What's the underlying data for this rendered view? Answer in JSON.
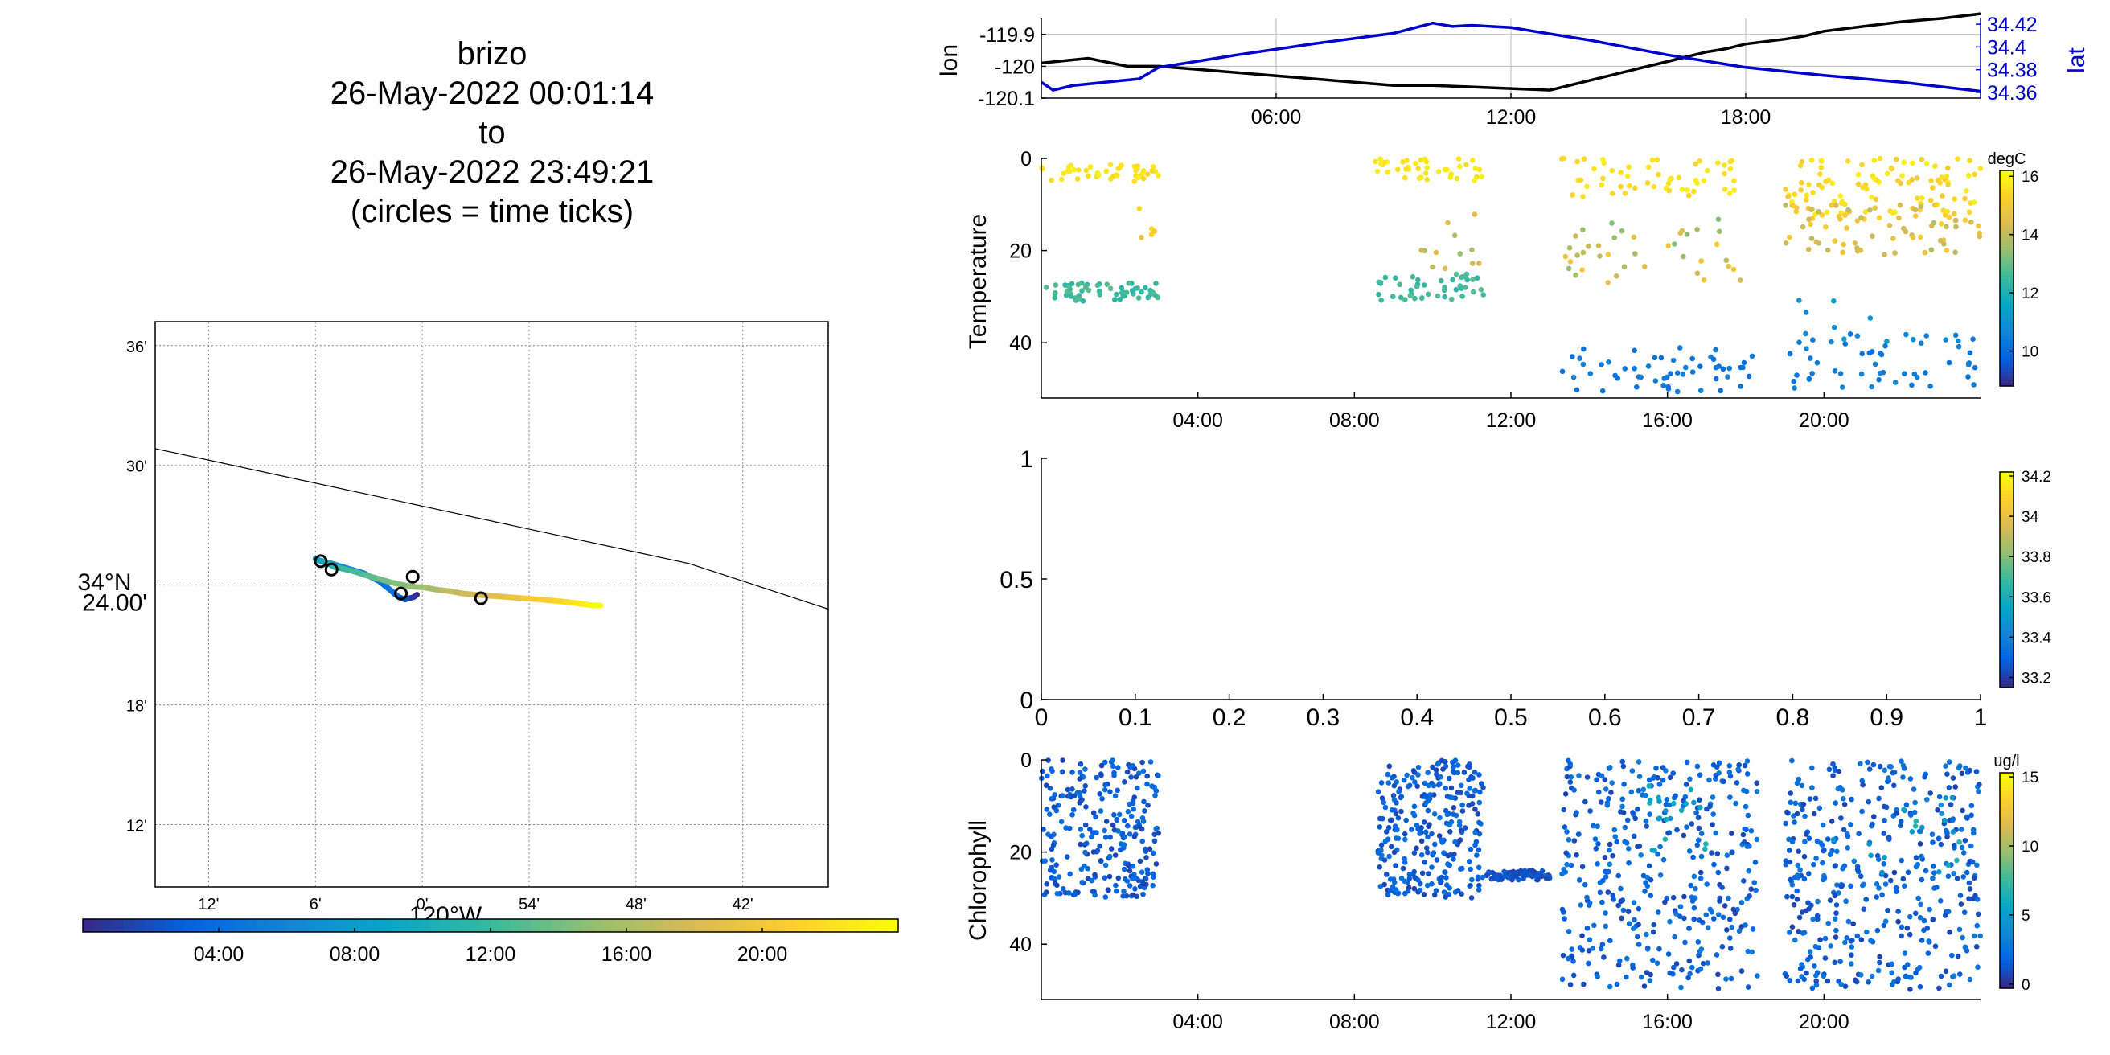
{
  "header": {
    "lines": [
      "brizo",
      "26-May-2022 00:01:14",
      "to",
      "26-May-2022 23:49:21",
      "(circles = time ticks)"
    ]
  },
  "colors": {
    "track_lon": "#000000",
    "track_lat": "#0000cc",
    "coast": "#000000",
    "colormap": "parula"
  },
  "chart_data": [
    {
      "type": "line",
      "name": "position-time",
      "ylabel_left": "lon",
      "ylabel_right": "lat",
      "ylim_left": [
        -120.1,
        -119.85
      ],
      "ylim_right": [
        34.355,
        34.425
      ],
      "yticks_left": [
        -119.9,
        -120,
        -120.1
      ],
      "ytick_labels_left": [
        "-119.9",
        "-120",
        "-120.1"
      ],
      "yticks_right": [
        34.42,
        34.4,
        34.38,
        34.36
      ],
      "ytick_labels_right": [
        "34.42",
        "34.4",
        "34.38",
        "34.36"
      ],
      "xlim_hours": [
        0,
        24
      ],
      "xticks": [
        6,
        12,
        18
      ],
      "xtick_labels": [
        "06:00",
        "12:00",
        "18:00"
      ],
      "grid": true,
      "series": [
        {
          "axis": "left",
          "color": "#000000",
          "x": [
            0,
            1.2,
            2.2,
            3.0,
            4.5,
            6,
            7.5,
            9,
            10,
            11,
            12,
            13,
            14,
            15,
            16,
            17,
            17.5,
            18,
            19,
            19.5,
            20,
            21,
            22,
            23,
            24
          ],
          "y": [
            -119.99,
            -119.975,
            -120.0,
            -120.0,
            -120.015,
            -120.03,
            -120.045,
            -120.06,
            -120.06,
            -120.065,
            -120.07,
            -120.075,
            -120.045,
            -120.015,
            -119.985,
            -119.955,
            -119.945,
            -119.93,
            -119.915,
            -119.905,
            -119.89,
            -119.875,
            -119.86,
            -119.85,
            -119.835
          ]
        },
        {
          "axis": "right",
          "color": "#0000cc",
          "x": [
            0,
            0.3,
            0.8,
            2.5,
            3.0,
            5,
            7,
            9,
            10,
            10.5,
            11,
            12,
            14,
            16,
            18,
            20,
            22,
            23,
            24
          ],
          "y": [
            34.369,
            34.362,
            34.366,
            34.372,
            34.382,
            34.393,
            34.403,
            34.412,
            34.421,
            34.418,
            34.419,
            34.417,
            34.406,
            34.393,
            34.382,
            34.375,
            34.369,
            34.365,
            34.361
          ]
        }
      ]
    },
    {
      "type": "scatter",
      "name": "temperature-section",
      "ylabel": "Temperature",
      "ylim": [
        0,
        52
      ],
      "y_reversed": true,
      "yticks": [
        0,
        20,
        40
      ],
      "ytick_labels": [
        "0",
        "20",
        "40"
      ],
      "xlim_hours": [
        0,
        24
      ],
      "xticks": [
        4,
        8,
        12,
        16,
        20
      ],
      "xtick_labels": [
        "04:00",
        "08:00",
        "12:00",
        "16:00",
        "20:00"
      ],
      "colorbar": {
        "label": "degC",
        "range": [
          8.8,
          16.2
        ],
        "ticks": [
          10,
          12,
          14,
          16
        ],
        "tick_labels": [
          "10",
          "12",
          "14",
          "16"
        ]
      },
      "clusters": [
        {
          "t": [
            0.0,
            3.0
          ],
          "depth": [
            1,
            5
          ],
          "value": [
            15.4,
            16.0
          ],
          "n": 45
        },
        {
          "t": [
            0.0,
            3.0
          ],
          "depth": [
            27,
            31
          ],
          "value": [
            12.2,
            12.9
          ],
          "n": 60
        },
        {
          "t": [
            2.5,
            2.9
          ],
          "depth": [
            10,
            19
          ],
          "value": [
            14.3,
            15.5
          ],
          "n": 5
        },
        {
          "t": [
            8.5,
            11.3
          ],
          "depth": [
            0,
            5
          ],
          "value": [
            15.6,
            16.0
          ],
          "n": 40
        },
        {
          "t": [
            8.6,
            11.3
          ],
          "depth": [
            25,
            31
          ],
          "value": [
            12.3,
            12.9
          ],
          "n": 45
        },
        {
          "t": [
            9.5,
            11.2
          ],
          "depth": [
            12,
            24
          ],
          "value": [
            13.2,
            14.6
          ],
          "n": 12
        },
        {
          "t": [
            13.3,
            18.0
          ],
          "depth": [
            0,
            9
          ],
          "value": [
            15.4,
            16.0
          ],
          "n": 55
        },
        {
          "t": [
            13.3,
            18.0
          ],
          "depth": [
            13,
            27
          ],
          "value": [
            13.2,
            15.2
          ],
          "n": 40
        },
        {
          "t": [
            13.3,
            18.3
          ],
          "depth": [
            41,
            51
          ],
          "value": [
            10.0,
            10.6
          ],
          "n": 55
        },
        {
          "t": [
            19.0,
            24.0
          ],
          "depth": [
            0,
            13
          ],
          "value": [
            15.0,
            16.0
          ],
          "n": 110
        },
        {
          "t": [
            19.0,
            24.0
          ],
          "depth": [
            10,
            21
          ],
          "value": [
            13.8,
            15.3
          ],
          "n": 70
        },
        {
          "t": [
            19.0,
            24.0
          ],
          "depth": [
            38,
            50
          ],
          "value": [
            10.1,
            10.8
          ],
          "n": 55
        },
        {
          "t": [
            19.3,
            22.5
          ],
          "depth": [
            27,
            40
          ],
          "value": [
            10.8,
            11.5
          ],
          "n": 8
        }
      ]
    },
    {
      "type": "scatter",
      "name": "salinity-empty",
      "ylim": [
        0,
        1
      ],
      "xlim": [
        0,
        1
      ],
      "yticks": [
        0,
        0.5,
        1
      ],
      "ytick_labels": [
        "0",
        "0.5",
        "1"
      ],
      "xticks": [
        0,
        0.1,
        0.2,
        0.3,
        0.4,
        0.5,
        0.6,
        0.7,
        0.8,
        0.9,
        1
      ],
      "xtick_labels": [
        "0",
        "0.1",
        "0.2",
        "0.3",
        "0.4",
        "0.5",
        "0.6",
        "0.7",
        "0.8",
        "0.9",
        "1"
      ],
      "colorbar": {
        "label": "",
        "range": [
          33.15,
          34.22
        ],
        "ticks": [
          33.2,
          33.4,
          33.6,
          33.8,
          34,
          34.2
        ],
        "tick_labels": [
          "33.2",
          "33.4",
          "33.6",
          "33.8",
          "34",
          "34.2"
        ]
      },
      "series": []
    },
    {
      "type": "scatter",
      "name": "chlorophyll-section",
      "ylabel": "Chlorophyll",
      "ylim": [
        0,
        52
      ],
      "y_reversed": true,
      "yticks": [
        0,
        20,
        40
      ],
      "ytick_labels": [
        "0",
        "20",
        "40"
      ],
      "xlim_hours": [
        0,
        24
      ],
      "xticks": [
        4,
        8,
        12,
        16,
        20
      ],
      "xtick_labels": [
        "04:00",
        "08:00",
        "12:00",
        "16:00",
        "20:00"
      ],
      "colorbar": {
        "label": "ug/l",
        "range": [
          -0.3,
          15.3
        ],
        "ticks": [
          0,
          5,
          10,
          15
        ],
        "tick_labels": [
          "0",
          "5",
          "10",
          "15"
        ]
      },
      "clusters": [
        {
          "t": [
            0.0,
            3.0
          ],
          "depth": [
            0,
            30
          ],
          "value": [
            0.5,
            2.5
          ],
          "n": 260
        },
        {
          "t": [
            8.6,
            11.3
          ],
          "depth": [
            0,
            30
          ],
          "value": [
            0.5,
            2.5
          ],
          "n": 280
        },
        {
          "t": [
            11.3,
            13.0
          ],
          "depth": [
            24,
            26
          ],
          "value": [
            0.5,
            1.5
          ],
          "n": 70
        },
        {
          "t": [
            13.3,
            18.3
          ],
          "depth": [
            0,
            50
          ],
          "value": [
            0.5,
            3.0
          ],
          "n": 380
        },
        {
          "t": [
            15.5,
            17.0
          ],
          "depth": [
            5,
            20
          ],
          "value": [
            4.0,
            7.0
          ],
          "n": 20
        },
        {
          "t": [
            19.0,
            24.0
          ],
          "depth": [
            0,
            50
          ],
          "value": [
            0.5,
            3.0
          ],
          "n": 420
        },
        {
          "t": [
            20.0,
            23.5
          ],
          "depth": [
            8,
            25
          ],
          "value": [
            4.0,
            7.0
          ],
          "n": 20
        }
      ]
    },
    {
      "type": "map",
      "name": "track-map",
      "lon_range": [
        -120.25,
        -119.62
      ],
      "lat_range": [
        34.148,
        34.62
      ],
      "xticks_lon": [
        -120.2,
        -120.1,
        -120.0,
        -119.9,
        -119.8,
        -119.7
      ],
      "xtick_labels": [
        "12'",
        "6'",
        "0'",
        "54'",
        "48'",
        "42'"
      ],
      "x_axis_label": "120°W",
      "yticks_lat": [
        34.2,
        34.3,
        34.4,
        34.5,
        34.6
      ],
      "ytick_labels": [
        "12'",
        "18'",
        "24.00'",
        "30'",
        "36'"
      ],
      "y_center_label": "34°N",
      "coastline": {
        "lon": [
          -120.25,
          -120.0,
          -119.75,
          -119.62
        ],
        "lat": [
          34.514,
          34.466,
          34.418,
          34.38
        ]
      },
      "track": {
        "lon": [
          -120.005,
          -120.008,
          -120.012,
          -120.016,
          -120.019,
          -120.022,
          -120.025,
          -120.03,
          -120.04,
          -120.055,
          -120.07,
          -120.085,
          -120.095,
          -120.1,
          -120.098,
          -120.093,
          -120.088,
          -120.084,
          -120.082,
          -120.081,
          -120.066,
          -120.052,
          -120.04,
          -120.028,
          -120.012,
          -119.998,
          -119.985,
          -119.975,
          -119.962,
          -119.95,
          -119.935,
          -119.92,
          -119.905,
          -119.89,
          -119.878,
          -119.866,
          -119.856,
          -119.848,
          -119.84,
          -119.833
        ],
        "lat": [
          34.392,
          34.39,
          34.389,
          34.388,
          34.389,
          34.39,
          34.392,
          34.396,
          34.403,
          34.41,
          34.414,
          34.418,
          34.42,
          34.422,
          34.421,
          34.42,
          34.418,
          34.416,
          34.415,
          34.415,
          34.412,
          34.408,
          34.405,
          34.402,
          34.399,
          34.398,
          34.396,
          34.395,
          34.393,
          34.392,
          34.391,
          34.39,
          34.389,
          34.388,
          34.387,
          34.386,
          34.385,
          34.384,
          34.383,
          34.383
        ]
      },
      "time_tick_circles": {
        "lon": [
          -120.095,
          -120.085,
          -120.009,
          -120.02,
          -119.945
        ],
        "lat": [
          34.42,
          34.413,
          34.407,
          34.393,
          34.389
        ]
      },
      "colorbar": {
        "ticks": [
          4,
          8,
          12,
          16,
          20
        ],
        "tick_labels": [
          "04:00",
          "08:00",
          "12:00",
          "16:00",
          "20:00"
        ],
        "range_hours": [
          0,
          24
        ]
      }
    }
  ]
}
